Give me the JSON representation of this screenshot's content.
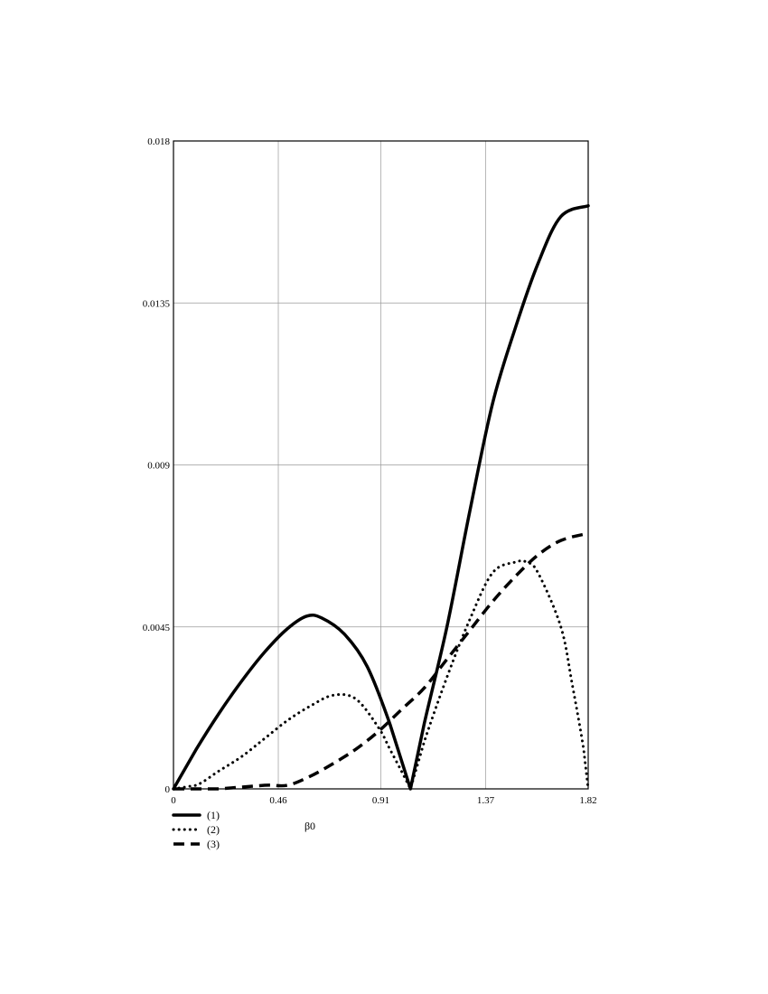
{
  "chart_data": {
    "type": "line",
    "title": "",
    "xlabel": "β0",
    "ylabel": "",
    "xlim": [
      0,
      1.82
    ],
    "ylim": [
      0,
      0.018
    ],
    "xticks": [
      0,
      0.46,
      0.91,
      1.37,
      1.82
    ],
    "xtick_labels": [
      "0",
      "0.46",
      "0.91",
      "1.37",
      "1.82"
    ],
    "yticks": [
      0,
      0.0045,
      0.009,
      0.0135,
      0.018
    ],
    "ytick_labels": [
      "0",
      "0.0045",
      "0.009",
      "0.0135",
      "0.018"
    ],
    "grid": true,
    "legend_position": "bottom-left",
    "series": [
      {
        "name": "(1)",
        "style": "solid",
        "x": [
          0,
          0.1,
          0.2,
          0.3,
          0.4,
          0.5,
          0.585,
          0.65,
          0.75,
          0.85,
          0.95,
          1.04,
          1.1,
          1.2,
          1.3,
          1.4,
          1.5,
          1.6,
          1.7,
          1.82
        ],
        "y": [
          0,
          0.0011,
          0.0021,
          0.003,
          0.0038,
          0.00445,
          0.0048,
          0.00475,
          0.0043,
          0.0034,
          0.0018,
          0,
          0.0018,
          0.0045,
          0.0077,
          0.0107,
          0.0128,
          0.0146,
          0.0159,
          0.0162
        ]
      },
      {
        "name": "(2)",
        "style": "dotted",
        "x": [
          0,
          0.1,
          0.2,
          0.3,
          0.4,
          0.5,
          0.6,
          0.7,
          0.8,
          0.9,
          0.95,
          1.0,
          1.04,
          1.1,
          1.2,
          1.3,
          1.4,
          1.5,
          1.55,
          1.6,
          1.7,
          1.75,
          1.8,
          1.82
        ],
        "y": [
          0,
          0.0001,
          0.0005,
          0.0009,
          0.0014,
          0.0019,
          0.0023,
          0.0026,
          0.0025,
          0.0017,
          0.0011,
          0.0005,
          0,
          0.0013,
          0.0031,
          0.0047,
          0.006,
          0.0063,
          0.0063,
          0.006,
          0.0045,
          0.0029,
          0.0011,
          0
        ]
      },
      {
        "name": "(3)",
        "style": "dashed",
        "x": [
          0,
          0.2,
          0.4,
          0.5,
          0.6,
          0.7,
          0.8,
          0.9,
          1.0,
          1.1,
          1.2,
          1.3,
          1.4,
          1.5,
          1.6,
          1.7,
          1.82
        ],
        "y": [
          0,
          0,
          0.0001,
          0.0001,
          0.00035,
          0.0007,
          0.0011,
          0.0016,
          0.0022,
          0.0028,
          0.0036,
          0.0044,
          0.0052,
          0.0059,
          0.0065,
          0.0069,
          0.0071
        ]
      }
    ]
  }
}
